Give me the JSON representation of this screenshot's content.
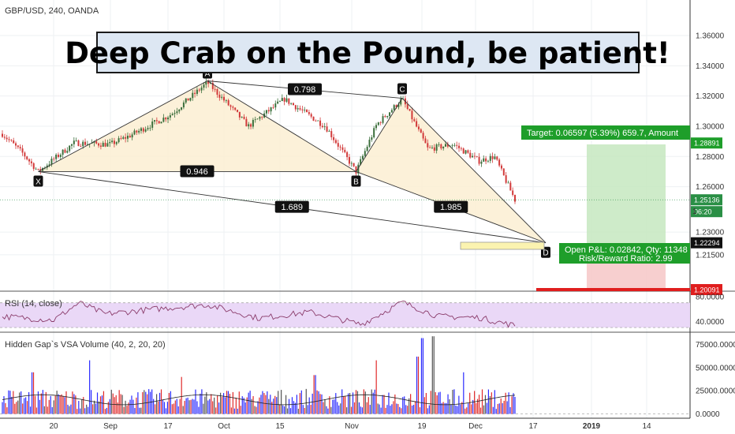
{
  "header": {
    "symbol_line": "GBP/USD, 240, OANDA"
  },
  "banner": {
    "text": "Deep Crab on the Pound, be patient!"
  },
  "colors": {
    "up": "#3c6f3c",
    "down": "#d23a3a",
    "pattern_fill": "#fbeed2",
    "target_fill": "#c5e8c0",
    "stop_fill": "#f6c7c7",
    "green_tag": "#1e9e2a",
    "red_tag": "#e01e1e",
    "rsi_band": "#ead8f7",
    "rsi_line": "#8a3b6a",
    "vol_blue": "#2b2bff",
    "vol_red": "#e02a2a",
    "vol_gray": "#555555"
  },
  "chart_data": [
    {
      "type": "candlestick",
      "title": "GBP/USD, 240, OANDA",
      "xlabel": "",
      "ylabel": "",
      "ylim": [
        1.1925,
        1.372
      ],
      "x_ticks": [
        "20",
        "Sep",
        "17",
        "Oct",
        "15",
        "Nov",
        "19",
        "Dec",
        "17",
        "2019",
        "14"
      ],
      "y_ticks": [
        "1.36000",
        "1.34000",
        "1.32000",
        "1.30000",
        "1.28000",
        "1.26000",
        "1.23000",
        "1.21500"
      ],
      "price_anchors": [
        {
          "t": 0.0,
          "p": 1.295
        },
        {
          "t": 0.04,
          "p": 1.282
        },
        {
          "t": 0.07,
          "p": 1.27
        },
        {
          "t": 0.14,
          "p": 1.289
        },
        {
          "t": 0.21,
          "p": 1.288
        },
        {
          "t": 0.25,
          "p": 1.294
        },
        {
          "t": 0.33,
          "p": 1.308
        },
        {
          "t": 0.4,
          "p": 1.329
        },
        {
          "t": 0.48,
          "p": 1.3
        },
        {
          "t": 0.55,
          "p": 1.318
        },
        {
          "t": 0.63,
          "p": 1.3
        },
        {
          "t": 0.69,
          "p": 1.27
        },
        {
          "t": 0.73,
          "p": 1.301
        },
        {
          "t": 0.78,
          "p": 1.318
        },
        {
          "t": 0.83,
          "p": 1.285
        },
        {
          "t": 0.88,
          "p": 1.288
        },
        {
          "t": 0.93,
          "p": 1.277
        },
        {
          "t": 0.96,
          "p": 1.28
        },
        {
          "t": 1.0,
          "p": 1.2513
        }
      ],
      "pattern": {
        "name": "Deep Crab",
        "points": [
          {
            "label": "X",
            "date_index": 0.07,
            "price": 1.27
          },
          {
            "label": "A",
            "date_index": 0.4,
            "price": 1.33
          },
          {
            "label": "B",
            "date_index": 0.69,
            "price": 1.27
          },
          {
            "label": "C",
            "date_index": 0.78,
            "price": 1.3185
          },
          {
            "label": "D",
            "date_index": 1.06,
            "price": 1.2229
          }
        ],
        "ratios": [
          "0.798",
          "0.946",
          "1.689",
          "1.985"
        ]
      },
      "position": {
        "target_text": "Target: 0.06597 (5.39%) 659.7, Amount",
        "pnl_text": "Open P&L: 0.02842, Qty: 11348",
        "rr_text": "Risk/Reward Ratio: 2.99",
        "target_price": 1.28891,
        "entry_price": 1.22294,
        "stop_price": 1.20091
      },
      "price_tags": {
        "target": "1.28891",
        "current": "1.25136",
        "countdown": "06:20",
        "entry": "1.22294",
        "stop": "1.20091",
        "partial": "1"
      }
    },
    {
      "type": "line",
      "title": "RSI (14, close)",
      "y_ticks": [
        "80.0000",
        "40.0000"
      ],
      "ylim": [
        25,
        85
      ],
      "band": [
        30,
        70
      ],
      "anchors": [
        {
          "t": 0.0,
          "v": 48
        },
        {
          "t": 0.1,
          "v": 42
        },
        {
          "t": 0.15,
          "v": 70
        },
        {
          "t": 0.2,
          "v": 52
        },
        {
          "t": 0.3,
          "v": 60
        },
        {
          "t": 0.4,
          "v": 67
        },
        {
          "t": 0.5,
          "v": 45
        },
        {
          "t": 0.6,
          "v": 55
        },
        {
          "t": 0.7,
          "v": 35
        },
        {
          "t": 0.78,
          "v": 71
        },
        {
          "t": 0.85,
          "v": 48
        },
        {
          "t": 0.93,
          "v": 46
        },
        {
          "t": 1.0,
          "v": 33
        }
      ]
    },
    {
      "type": "bar",
      "title": "Hidden Gap`s VSA Volume (40, 2, 20, 20)",
      "y_ticks": [
        "75000.0000",
        "50000.0000",
        "25000.0000",
        "0.0000"
      ],
      "ylim": [
        -3000,
        85000
      ],
      "typical": 18000,
      "peaks": [
        {
          "t": 0.06,
          "v": 45000
        },
        {
          "t": 0.17,
          "v": 58000
        },
        {
          "t": 0.35,
          "v": 40000
        },
        {
          "t": 0.61,
          "v": 42000
        },
        {
          "t": 0.73,
          "v": 58000
        },
        {
          "t": 0.81,
          "v": 62000
        },
        {
          "t": 0.82,
          "v": 82000
        },
        {
          "t": 0.84,
          "v": 84000
        },
        {
          "t": 0.9,
          "v": 45000
        }
      ]
    }
  ]
}
